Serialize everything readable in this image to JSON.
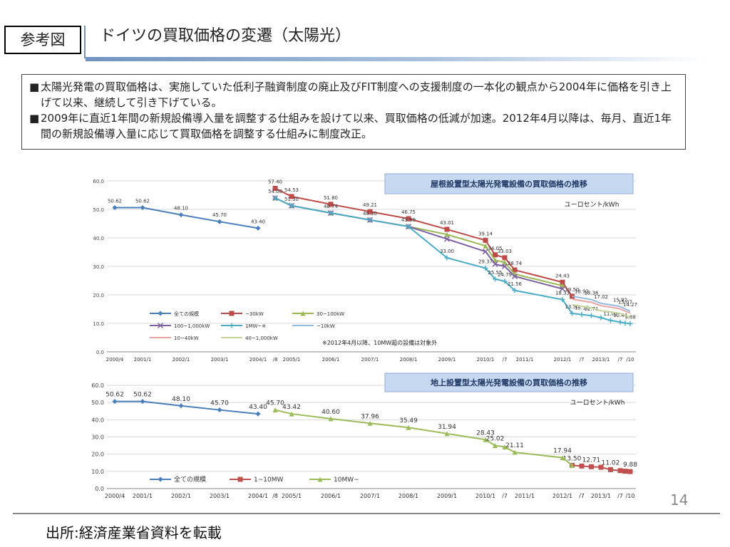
{
  "header": {
    "tag": "参考図",
    "title": "ドイツの買取価格の変遷（太陽光）"
  },
  "notes": [
    "太陽光発電の買取価格は、実施していた低利子融資制度の廃止及びFIT制度への支援制度の一本化の観点から2004年に価格を引き上げて以来、継続して引き下げている。",
    "2009年に直近1年間の新規設備導入量を調整する仕組みを設けて以来、買取価格の低減が加速。2012年4月以降は、毎月、直近1年間の新規設備導入量に応じて買取価格を調整する仕組みに制度改正。"
  ],
  "page_number": "14",
  "source": "出所:経済産業省資料を転載",
  "chart_data": [
    {
      "type": "line",
      "title": "屋根設置型太陽光発電設備の買取価格の推移",
      "ylabel": "ユーロセント/kWh",
      "ylim": [
        0,
        60
      ],
      "yticks": [
        "0.0",
        "10.0",
        "20.0",
        "30.0",
        "40.0",
        "50.0",
        "60.0"
      ],
      "x_tick_labels": [
        "2000/4",
        "2001/1",
        "2002/1",
        "2003/1",
        "2004/1",
        "/8",
        "2005/1",
        "2006/1",
        "2007/1",
        "2008/1",
        "2009/1",
        "2010/1",
        "/7",
        "2011/1",
        "2012/1",
        "/7",
        "2013/1",
        "/7",
        "/10"
      ],
      "note": "※2012年4月以降、10MW超の設備は対象外",
      "series": [
        {
          "name": "全ての規模",
          "color": "#4a7ebb",
          "marker": "diamond",
          "x": [
            0,
            1,
            2,
            3,
            4
          ],
          "values": [
            50.62,
            50.62,
            48.1,
            45.7,
            43.4
          ],
          "labels": [
            "50.62",
            "50.62",
            "48.10",
            "45.70",
            "43.40"
          ]
        },
        {
          "name": "~30kW",
          "color": "#be4b48",
          "marker": "square",
          "x": [
            5,
            6,
            7,
            8,
            9,
            10,
            11,
            11.5,
            12,
            12.5,
            14,
            14.5
          ],
          "values": [
            57.4,
            54.53,
            51.8,
            49.21,
            46.75,
            43.01,
            39.14,
            34.05,
            33.03,
            28.74,
            24.43,
            19.5
          ],
          "labels": [
            "57.40",
            "54.53",
            "51.80",
            "49.21",
            "46.75",
            "43.01",
            "39.14",
            "34.05",
            "33.03",
            "28.74",
            "24.43",
            "19.50"
          ]
        },
        {
          "name": "30~100kW",
          "color": "#98b954",
          "marker": "triangle",
          "x": [
            5,
            6,
            7,
            8,
            9,
            10,
            11,
            11.5,
            12,
            12.5,
            14
          ],
          "values": [
            54.0,
            51.3,
            48.74,
            46.3,
            43.99,
            41.2,
            37.2,
            32.2,
            31.4,
            27.3,
            23.2
          ],
          "labels": [
            "54.00",
            "51.30",
            "48.74",
            "46.30",
            "43.99",
            "",
            "",
            "",
            "",
            "",
            ""
          ]
        },
        {
          "name": "100~1,000kW",
          "color": "#7d60a0",
          "marker": "x",
          "x": [
            5,
            6,
            7,
            8,
            9,
            10,
            11,
            11.5,
            12,
            12.5,
            14
          ],
          "values": [
            54.0,
            51.3,
            48.74,
            46.3,
            43.99,
            39.6,
            35.2,
            30.8,
            30.0,
            26.5,
            22.1
          ],
          "labels": [
            "",
            "",
            "",
            "",
            "",
            "",
            "",
            "",
            "",
            "",
            ""
          ]
        },
        {
          "name": "1MW~※",
          "color": "#4bacc6",
          "marker": "star",
          "x": [
            5,
            6,
            7,
            8,
            9,
            10,
            11,
            11.5,
            12,
            12.5,
            14,
            14.5,
            15,
            15.5,
            16,
            16.5,
            17,
            17.5,
            18
          ],
          "values": [
            54.0,
            51.3,
            48.74,
            46.3,
            43.99,
            33.0,
            29.37,
            25.55,
            24.79,
            21.56,
            18.33,
            13.5,
            13.1,
            12.71,
            12.0,
            11.02,
            10.44,
            10.1,
            9.88
          ],
          "labels": [
            "",
            "",
            "",
            "",
            "",
            "33.00",
            "29.37",
            "25.55",
            "24.79",
            "21.56",
            "18.33",
            "13.50",
            "13.10",
            "12.71",
            "",
            "11.02",
            "10.44",
            "",
            "9.88"
          ]
        },
        {
          "name": "~10kW",
          "color": "#92b9df",
          "marker": "none",
          "x": [
            14.5,
            15,
            15.5,
            16,
            16.5,
            17,
            17.5,
            18
          ],
          "values": [
            19.5,
            18.92,
            18.36,
            17.02,
            16.5,
            15.92,
            15.07,
            14.27
          ],
          "labels": [
            "",
            "18.92",
            "18.36",
            "17.02",
            "",
            "15.92",
            "15.07",
            "14.27"
          ]
        },
        {
          "name": "10~40kW",
          "color": "#e8a3a3",
          "marker": "none",
          "x": [
            14.5,
            15,
            15.5,
            16,
            16.5,
            17,
            17.5,
            18
          ],
          "values": [
            18.5,
            17.9,
            17.4,
            16.2,
            15.7,
            15.1,
            14.3,
            13.6
          ],
          "labels": [
            "",
            "",
            "",
            "",
            "",
            "",
            "",
            ""
          ]
        },
        {
          "name": "40~1,000kW",
          "color": "#c3d69b",
          "marker": "none",
          "x": [
            14.5,
            15,
            15.5,
            16,
            16.5,
            17,
            17.5,
            18
          ],
          "values": [
            16.5,
            16.0,
            15.5,
            14.4,
            14.0,
            13.5,
            12.8,
            12.1
          ],
          "labels": [
            "",
            "",
            "",
            "",
            "",
            "",
            "",
            ""
          ]
        }
      ]
    },
    {
      "type": "line",
      "title": "地上設置型太陽光発電設備の買取価格の推移",
      "ylabel": "ユーロセント/kWh",
      "ylim": [
        0,
        60
      ],
      "yticks": [
        "0.0",
        "10.0",
        "20.0",
        "30.0",
        "40.0",
        "50.0",
        "60.0"
      ],
      "x_tick_labels": [
        "2000/4",
        "2001/1",
        "2002/1",
        "2003/1",
        "2004/1",
        "/8",
        "2005/1",
        "2006/1",
        "2007/1",
        "2008/1",
        "2009/1",
        "2010/1",
        "/7",
        "2011/1",
        "2012/1",
        "/7",
        "2013/1",
        "/7",
        "/10"
      ],
      "series": [
        {
          "name": "全ての規模",
          "color": "#4a7ebb",
          "marker": "diamond",
          "x": [
            0,
            1,
            2,
            3,
            4
          ],
          "values": [
            50.62,
            50.62,
            48.1,
            45.7,
            43.4
          ],
          "labels": [
            "50.62",
            "50.62",
            "48.10",
            "45.70",
            "43.40"
          ]
        },
        {
          "name": "1~10MW",
          "color": "#c0504d",
          "marker": "square",
          "x": [
            14.5,
            15,
            15.5,
            16,
            16.5,
            17,
            17.5,
            18
          ],
          "values": [
            13.5,
            13.1,
            12.71,
            12.4,
            11.02,
            10.44,
            10.1,
            9.88
          ],
          "labels": [
            "13.50",
            "",
            "12.71",
            "",
            "11.02",
            "",
            "",
            "9.88"
          ]
        },
        {
          "name": "10MW~",
          "color": "#9bbb59",
          "marker": "triangle",
          "x": [
            5,
            6,
            7,
            8,
            9,
            10,
            11,
            11.5,
            12,
            12.5,
            14,
            14.5
          ],
          "values": [
            45.7,
            43.42,
            40.6,
            37.96,
            35.49,
            31.94,
            28.43,
            25.02,
            24.2,
            21.11,
            17.94,
            13.5
          ],
          "labels": [
            "45.70",
            "43.42",
            "40.60",
            "37.96",
            "35.49",
            "31.94",
            "28.43",
            "25.02",
            "",
            "21.11",
            "17.94",
            ""
          ]
        }
      ]
    }
  ]
}
